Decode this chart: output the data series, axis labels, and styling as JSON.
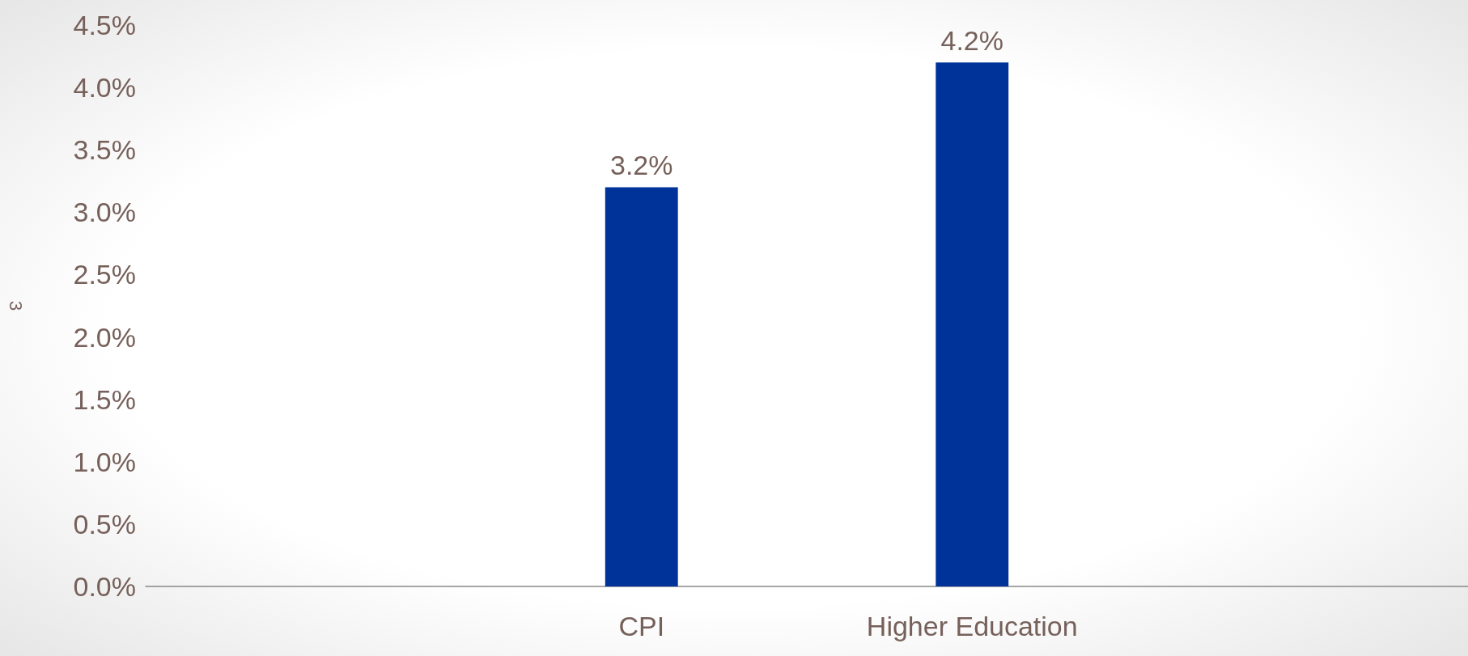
{
  "chart_data": {
    "type": "bar",
    "ylabel": "3",
    "categories": [
      null,
      "CPI",
      "Higher Education",
      null
    ],
    "values": [
      null,
      3.2,
      4.2,
      null
    ],
    "color": "#003399",
    "value_labels": [
      null,
      "3.2%",
      "4.2%",
      null
    ],
    "ylim": [
      0,
      4.5
    ],
    "yticks": [
      {
        "value": 0,
        "label": "0.0%"
      },
      {
        "value": 0.5,
        "label": "0.5%"
      },
      {
        "value": 1,
        "label": "1.0%"
      },
      {
        "value": 1.5,
        "label": "1.5%"
      },
      {
        "value": 2,
        "label": "2.0%"
      },
      {
        "value": 2.5,
        "label": "2.5%"
      },
      {
        "value": 3,
        "label": "3.0%"
      },
      {
        "value": 3.5,
        "label": "3.5%"
      },
      {
        "value": 4,
        "label": "4.0%"
      },
      {
        "value": 4.5,
        "label": "4.5%"
      }
    ],
    "grid": false
  }
}
